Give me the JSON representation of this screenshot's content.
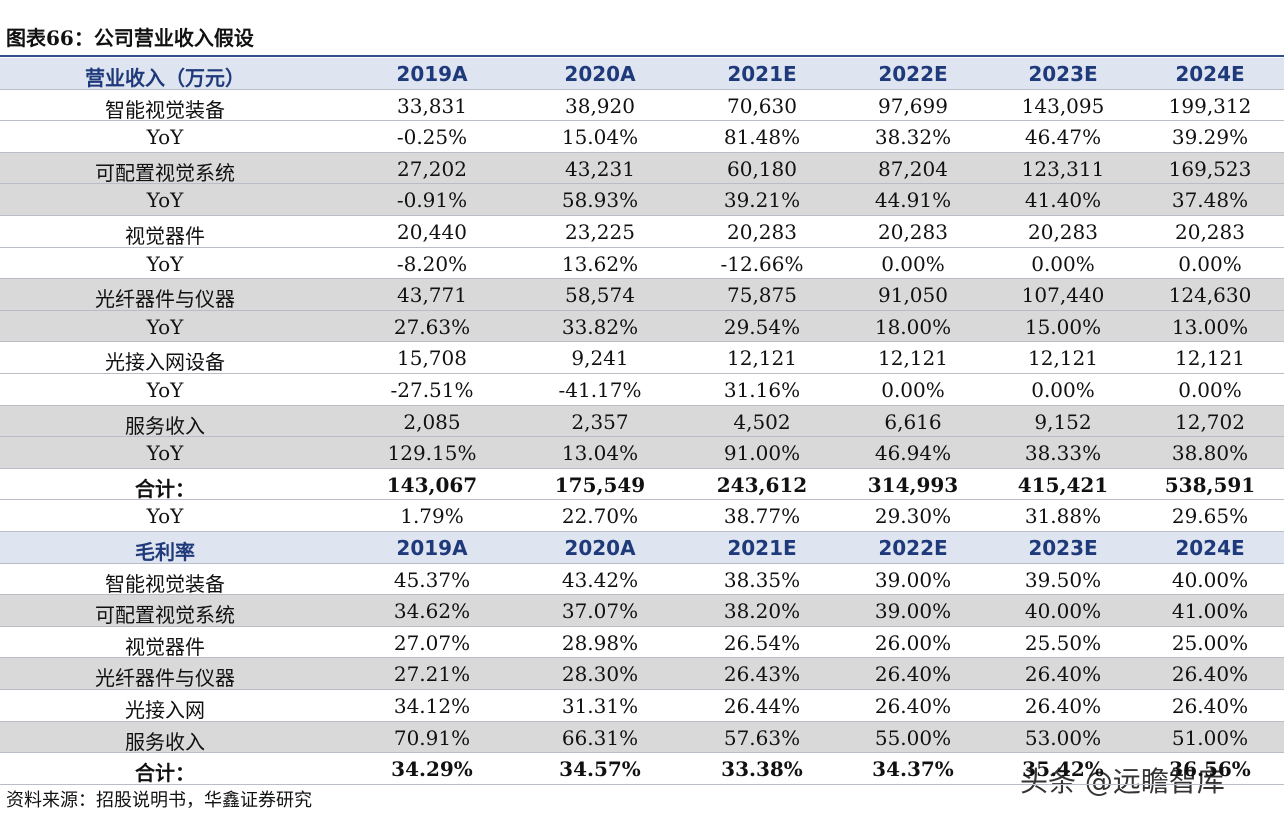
{
  "title": "图表66：公司营业收入假设",
  "table": {
    "header": [
      "营业收入（万元）",
      "2019A",
      "2020A",
      "2021E",
      "2022E",
      "2023E",
      "2024E"
    ],
    "rows": [
      [
        "智能视觉装备",
        "33,831",
        "38,920",
        "70,630",
        "97,699",
        "143,095",
        "199,312"
      ],
      [
        "YoY",
        "-0.25%",
        "15.04%",
        "81.48%",
        "38.32%",
        "46.47%",
        "39.29%"
      ],
      [
        "可配置视觉系统",
        "27,202",
        "43,231",
        "60,180",
        "87,204",
        "123,311",
        "169,523"
      ],
      [
        "YoY",
        "-0.91%",
        "58.93%",
        "39.21%",
        "44.91%",
        "41.40%",
        "37.48%"
      ],
      [
        "视觉器件",
        "20,440",
        "23,225",
        "20,283",
        "20,283",
        "20,283",
        "20,283"
      ],
      [
        "YoY",
        "-8.20%",
        "13.62%",
        "-12.66%",
        "0.00%",
        "0.00%",
        "0.00%"
      ],
      [
        "光纤器件与仪器",
        "43,771",
        "58,574",
        "75,875",
        "91,050",
        "107,440",
        "124,630"
      ],
      [
        "YoY",
        "27.63%",
        "33.82%",
        "29.54%",
        "18.00%",
        "15.00%",
        "13.00%"
      ],
      [
        "光接入网设备",
        "15,708",
        "9,241",
        "12,121",
        "12,121",
        "12,121",
        "12,121"
      ],
      [
        "YoY",
        "-27.51%",
        "-41.17%",
        "31.16%",
        "0.00%",
        "0.00%",
        "0.00%"
      ],
      [
        "服务收入",
        "2,085",
        "2,357",
        "4,502",
        "6,616",
        "9,152",
        "12,702"
      ],
      [
        "YoY",
        "129.15%",
        "13.04%",
        "91.00%",
        "46.94%",
        "38.33%",
        "38.80%"
      ],
      [
        "合计：",
        "143,067",
        "175,549",
        "243,612",
        "314,993",
        "415,421",
        "538,591"
      ],
      [
        "YoY",
        "1.79%",
        "22.70%",
        "38.77%",
        "29.30%",
        "31.88%",
        "29.65%"
      ]
    ],
    "margin_header": [
      "毛利率",
      "2019A",
      "2020A",
      "2021E",
      "2022E",
      "2023E",
      "2024E"
    ],
    "margin_rows": [
      [
        "智能视觉装备",
        "45.37%",
        "43.42%",
        "38.35%",
        "39.00%",
        "39.50%",
        "40.00%"
      ],
      [
        "可配置视觉系统",
        "34.62%",
        "37.07%",
        "38.20%",
        "39.00%",
        "40.00%",
        "41.00%"
      ],
      [
        "视觉器件",
        "27.07%",
        "28.98%",
        "26.54%",
        "26.00%",
        "25.50%",
        "25.00%"
      ],
      [
        "光纤器件与仪器",
        "27.21%",
        "28.30%",
        "26.43%",
        "26.40%",
        "26.40%",
        "26.40%"
      ],
      [
        "光接入网",
        "34.12%",
        "31.31%",
        "26.44%",
        "26.40%",
        "26.40%",
        "26.40%"
      ],
      [
        "服务收入",
        "70.91%",
        "66.31%",
        "57.63%",
        "55.00%",
        "53.00%",
        "51.00%"
      ],
      [
        "合计：",
        "34.29%",
        "34.57%",
        "33.38%",
        "34.37%",
        "35.42%",
        "36.56%"
      ]
    ]
  },
  "source": "资料来源：招股说明书，华鑫证券研究",
  "watermark": "头条 @远瞻智库"
}
